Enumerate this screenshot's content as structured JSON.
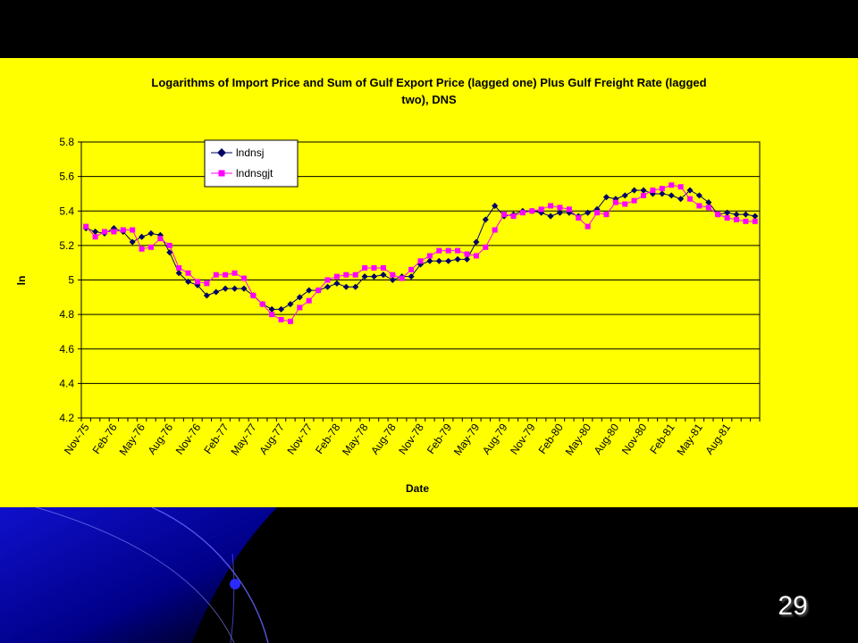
{
  "slide": {
    "page_number": "29"
  },
  "colors": {
    "background": "#000000",
    "panel": "#ffff00",
    "series1": "#000066",
    "series2": "#ff00ff",
    "gridline": "#000000",
    "swirl": "#1a1aff"
  },
  "chart_data": {
    "type": "line",
    "title_lines": [
      "Logarithms of Import Price and Sum of Gulf Export Price (lagged one) Plus Gulf Freight Rate (lagged",
      "two), DNS"
    ],
    "xlabel": "Date",
    "ylabel": "ln",
    "ylim": [
      4.2,
      5.8
    ],
    "yticks": [
      "5.8",
      "5.6",
      "5.4",
      "5.2",
      "5",
      "4.8",
      "4.6",
      "4.4",
      "4.2"
    ],
    "grid": "horizontal",
    "legend_position": "top-left",
    "x": [
      "Nov-75",
      "Dec-75",
      "Jan-76",
      "Feb-76",
      "Mar-76",
      "Apr-76",
      "May-76",
      "Jun-76",
      "Jul-76",
      "Aug-76",
      "Sep-76",
      "Oct-76",
      "Nov-76",
      "Dec-76",
      "Jan-77",
      "Feb-77",
      "Mar-77",
      "Apr-77",
      "May-77",
      "Jun-77",
      "Jul-77",
      "Aug-77",
      "Sep-77",
      "Oct-77",
      "Nov-77",
      "Dec-77",
      "Jan-78",
      "Feb-78",
      "Mar-78",
      "Apr-78",
      "May-78",
      "Jun-78",
      "Jul-78",
      "Aug-78",
      "Sep-78",
      "Oct-78",
      "Nov-78",
      "Dec-78",
      "Jan-79",
      "Feb-79",
      "Mar-79",
      "Apr-79",
      "May-79",
      "Jun-79",
      "Jul-79",
      "Aug-79",
      "Sep-79",
      "Oct-79",
      "Nov-79",
      "Dec-79",
      "Jan-80",
      "Feb-80",
      "Mar-80",
      "Apr-80",
      "May-80",
      "Jun-80",
      "Jul-80",
      "Aug-80",
      "Sep-80",
      "Oct-80",
      "Nov-80",
      "Dec-80",
      "Jan-81",
      "Feb-81",
      "Mar-81",
      "Apr-81",
      "May-81",
      "Jun-81",
      "Jul-81",
      "Aug-81",
      "Sep-81",
      "Oct-81",
      "Nov-81"
    ],
    "x_tick_labels": [
      "Nov-75",
      "Feb-76",
      "May-76",
      "Aug-76",
      "Nov-76",
      "Feb-77",
      "May-77",
      "Aug-77",
      "Nov-77",
      "Feb-78",
      "May-78",
      "Aug-78",
      "Nov-78",
      "Feb-79",
      "May-79",
      "Aug-79",
      "Nov-79",
      "Feb-80",
      "May-80",
      "Aug-80",
      "Nov-80",
      "Feb-81",
      "May-81",
      "Aug-81"
    ],
    "series": [
      {
        "name": "lndnsj",
        "marker": "diamond",
        "values": [
          5.3,
          5.28,
          5.27,
          5.3,
          5.28,
          5.22,
          5.25,
          5.27,
          5.26,
          5.16,
          5.04,
          4.99,
          4.97,
          4.91,
          4.93,
          4.95,
          4.95,
          4.95,
          4.91,
          4.86,
          4.83,
          4.83,
          4.86,
          4.9,
          4.94,
          4.94,
          4.96,
          4.98,
          4.96,
          4.96,
          5.02,
          5.02,
          5.03,
          5.0,
          5.02,
          5.02,
          5.09,
          5.11,
          5.11,
          5.11,
          5.12,
          5.12,
          5.22,
          5.35,
          5.43,
          5.37,
          5.38,
          5.4,
          5.4,
          5.39,
          5.37,
          5.39,
          5.39,
          5.37,
          5.39,
          5.41,
          5.48,
          5.47,
          5.49,
          5.52,
          5.52,
          5.5,
          5.5,
          5.49,
          5.47,
          5.52,
          5.49,
          5.45,
          5.38,
          5.39,
          5.38,
          5.38,
          5.37
        ]
      },
      {
        "name": "lndnsgjt",
        "marker": "square",
        "values": [
          5.31,
          5.25,
          5.28,
          5.28,
          5.29,
          5.29,
          5.18,
          5.19,
          5.24,
          5.2,
          5.07,
          5.04,
          4.99,
          4.98,
          5.03,
          5.03,
          5.04,
          5.01,
          4.91,
          4.86,
          4.8,
          4.77,
          4.76,
          4.84,
          4.88,
          4.94,
          5.0,
          5.02,
          5.03,
          5.03,
          5.07,
          5.07,
          5.07,
          5.03,
          5.01,
          5.06,
          5.11,
          5.14,
          5.17,
          5.17,
          5.17,
          5.15,
          5.14,
          5.19,
          5.29,
          5.38,
          5.37,
          5.39,
          5.4,
          5.41,
          5.43,
          5.42,
          5.41,
          5.36,
          5.31,
          5.39,
          5.38,
          5.45,
          5.44,
          5.46,
          5.49,
          5.52,
          5.53,
          5.55,
          5.54,
          5.47,
          5.43,
          5.42,
          5.38,
          5.36,
          5.35,
          5.34,
          5.34
        ]
      }
    ]
  }
}
